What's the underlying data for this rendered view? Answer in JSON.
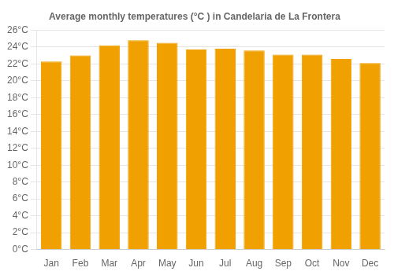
{
  "chart_data": {
    "type": "bar",
    "title": "Average monthly temperatures (°C ) in Candelaria de La Frontera",
    "categories": [
      "Jan",
      "Feb",
      "Mar",
      "Apr",
      "May",
      "Jun",
      "Jul",
      "Aug",
      "Sep",
      "Oct",
      "Nov",
      "Dec"
    ],
    "values": [
      22.3,
      23.0,
      24.2,
      24.8,
      24.5,
      23.7,
      23.8,
      23.6,
      23.1,
      23.1,
      22.6,
      22.1
    ],
    "color": "#F0A000",
    "ylim": [
      0,
      26
    ],
    "yticks": [
      {
        "value": 0,
        "label": "0°C"
      },
      {
        "value": 2,
        "label": "2°C"
      },
      {
        "value": 4,
        "label": "4°C"
      },
      {
        "value": 6,
        "label": "6°C"
      },
      {
        "value": 8,
        "label": "8°C"
      },
      {
        "value": 10,
        "label": "10°C"
      },
      {
        "value": 12,
        "label": "12°C"
      },
      {
        "value": 14,
        "label": "14°C"
      },
      {
        "value": 16,
        "label": "16°C"
      },
      {
        "value": 18,
        "label": "18°C"
      },
      {
        "value": 20,
        "label": "20°C"
      },
      {
        "value": 22,
        "label": "22°C"
      },
      {
        "value": 24,
        "label": "24°C"
      },
      {
        "value": 26,
        "label": "26°C"
      }
    ],
    "grid": true
  }
}
